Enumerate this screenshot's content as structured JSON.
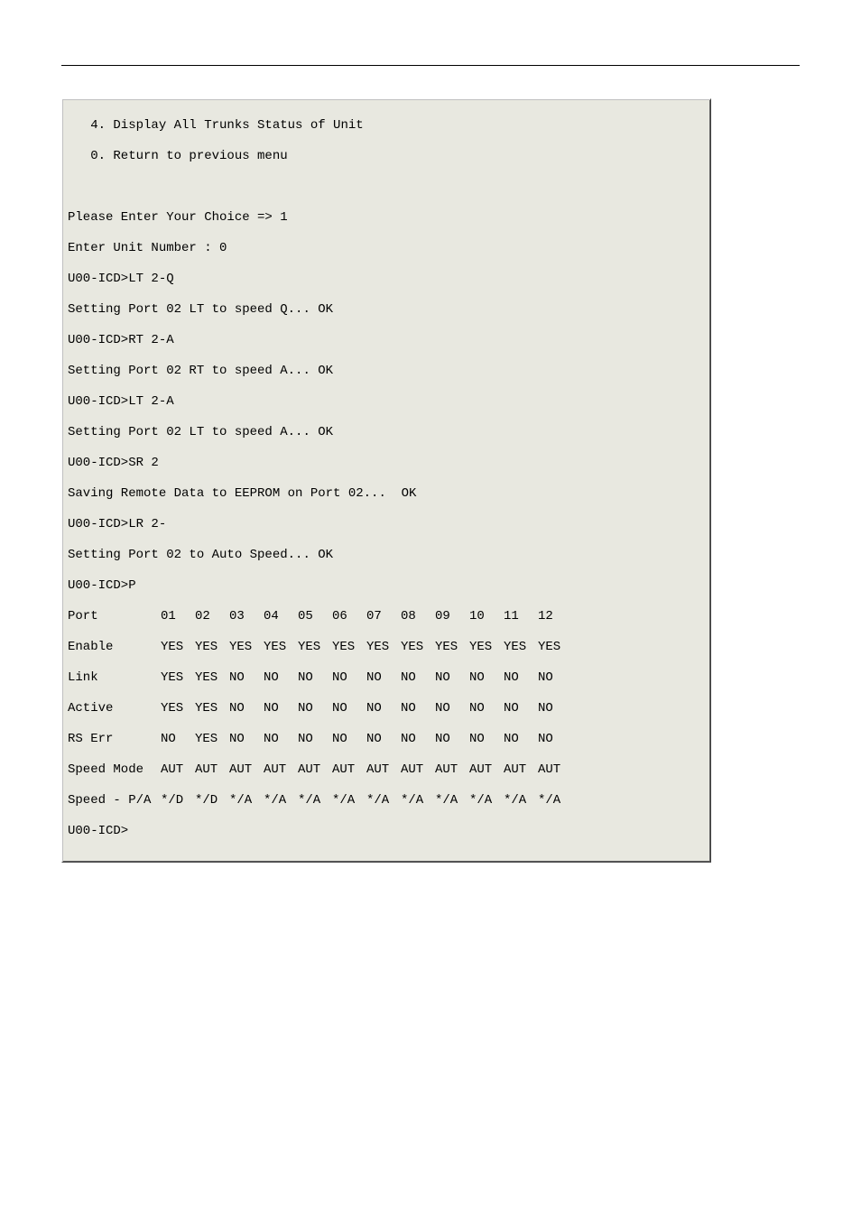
{
  "terminal": {
    "background_color": "#e8e8e0",
    "text_color": "#000000",
    "font_family": "Courier New",
    "font_size": 14,
    "menu_lines": [
      "   4. Display All Trunks Status of Unit",
      "   0. Return to previous menu"
    ],
    "session_lines": [
      "Please Enter Your Choice => 1",
      "Enter Unit Number : 0",
      "U00-ICD>LT 2-Q",
      "Setting Port 02 LT to speed Q... OK",
      "U00-ICD>RT 2-A",
      "Setting Port 02 RT to speed A... OK",
      "U00-ICD>LT 2-A",
      "Setting Port 02 LT to speed A... OK",
      "U00-ICD>SR 2",
      "Saving Remote Data to EEPROM on Port 02...  OK",
      "U00-ICD>LR 2-",
      "Setting Port 02 to Auto Speed... OK",
      "U00-ICD>P"
    ],
    "table": {
      "header_label": "Port",
      "columns": [
        "01",
        "02",
        "03",
        "04",
        "05",
        "06",
        "07",
        "08",
        "09",
        "10",
        "11",
        "12"
      ],
      "rows": [
        {
          "label": "Enable",
          "values": [
            "YES",
            "YES",
            "YES",
            "YES",
            "YES",
            "YES",
            "YES",
            "YES",
            "YES",
            "YES",
            "YES",
            "YES"
          ]
        },
        {
          "label": "Link",
          "values": [
            "YES",
            "YES",
            "NO",
            "NO",
            "NO",
            "NO",
            "NO",
            "NO",
            "NO",
            "NO",
            "NO",
            "NO"
          ]
        },
        {
          "label": "Active",
          "values": [
            "YES",
            "YES",
            "NO",
            "NO",
            "NO",
            "NO",
            "NO",
            "NO",
            "NO",
            "NO",
            "NO",
            "NO"
          ]
        },
        {
          "label": "RS Err",
          "values": [
            "NO",
            "YES",
            "NO",
            "NO",
            "NO",
            "NO",
            "NO",
            "NO",
            "NO",
            "NO",
            "NO",
            "NO"
          ]
        },
        {
          "label": "Speed Mode",
          "values": [
            "AUT",
            "AUT",
            "AUT",
            "AUT",
            "AUT",
            "AUT",
            "AUT",
            "AUT",
            "AUT",
            "AUT",
            "AUT",
            "AUT"
          ]
        },
        {
          "label": "Speed - P/A",
          "values": [
            "*/D",
            "*/D",
            "*/A",
            "*/A",
            "*/A",
            "*/A",
            "*/A",
            "*/A",
            "*/A",
            "*/A",
            "*/A",
            "*/A"
          ]
        }
      ]
    },
    "prompt": "U00-ICD>"
  }
}
